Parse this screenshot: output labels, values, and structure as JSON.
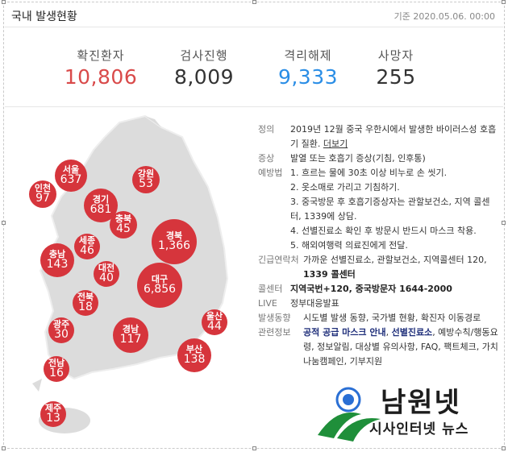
{
  "header": {
    "title": "국내 발생현황",
    "date": "기준 2020.05.06. 00:00"
  },
  "stats": [
    {
      "label": "확진환자",
      "value": "10,806",
      "color": "#d94a4a"
    },
    {
      "label": "검사진행",
      "value": "8,009",
      "color": "#333333"
    },
    {
      "label": "격리해제",
      "value": "9,333",
      "color": "#2b8ee6"
    },
    {
      "label": "사망자",
      "value": "255",
      "color": "#333333"
    }
  ],
  "regions": [
    {
      "name": "서울",
      "value": "637"
    },
    {
      "name": "강원",
      "value": "53"
    },
    {
      "name": "인천",
      "value": "97"
    },
    {
      "name": "경기",
      "value": "681"
    },
    {
      "name": "충북",
      "value": "45"
    },
    {
      "name": "세종",
      "value": "46"
    },
    {
      "name": "경북",
      "value": "1,366"
    },
    {
      "name": "충남",
      "value": "143"
    },
    {
      "name": "대전",
      "value": "40"
    },
    {
      "name": "대구",
      "value": "6,856"
    },
    {
      "name": "전북",
      "value": "18"
    },
    {
      "name": "광주",
      "value": "30"
    },
    {
      "name": "경남",
      "value": "117"
    },
    {
      "name": "울산",
      "value": "44"
    },
    {
      "name": "부산",
      "value": "138"
    },
    {
      "name": "전남",
      "value": "16"
    },
    {
      "name": "제주",
      "value": "13"
    }
  ],
  "info": {
    "definition_key": "정의",
    "definition": "2019년 12월 중국 우한시에서 발생한 바이러스성 호흡기 질환.",
    "more_link": "더보기",
    "symptom_key": "증상",
    "symptom": "발열 또는 호흡기 증상(기침, 인후통)",
    "prevention_key": "예방법",
    "prevention": [
      "1. 흐르는 물에 30초 이상 비누로 손 씻기.",
      "2. 옷소매로 가리고 기침하기.",
      "3. 중국방문 후 호흡기증상자는 관할보건소, 지역 콜센터, 1339에 상담.",
      "4. 선별진료소 확인 후 방문시 반드시 마스크 착용.",
      "5. 해외여행력 의료진에게 전달."
    ],
    "contact_key": "긴급연락처",
    "contact_prefix": "가까운 선별진료소, 관할보건소, 지역콜센터 120, ",
    "contact_bold": "1339 콜센터",
    "callcenter_key": "콜센터",
    "callcenter": "지역국번+120, 중국방문자 1644-2000",
    "live_key": "LIVE",
    "live": "정부대응발표",
    "trend_key": "발생동향",
    "trend": "시도별 발생 동향, 국가별 현황, 확진자 이동경로",
    "related_key": "관련정보",
    "related_bold1": "공적 공급 마스크 안내",
    "related_sep": ", ",
    "related_bold2": "선별진료소",
    "related_rest": ", 예방수칙/행동요령, 정보알림, 대상별 유의사항, FAQ, 팩트체크, 가치 나눔캠페인, 기부지원"
  },
  "watermark": {
    "big": "남원넷",
    "small": "시사인터넷 뉴스"
  }
}
